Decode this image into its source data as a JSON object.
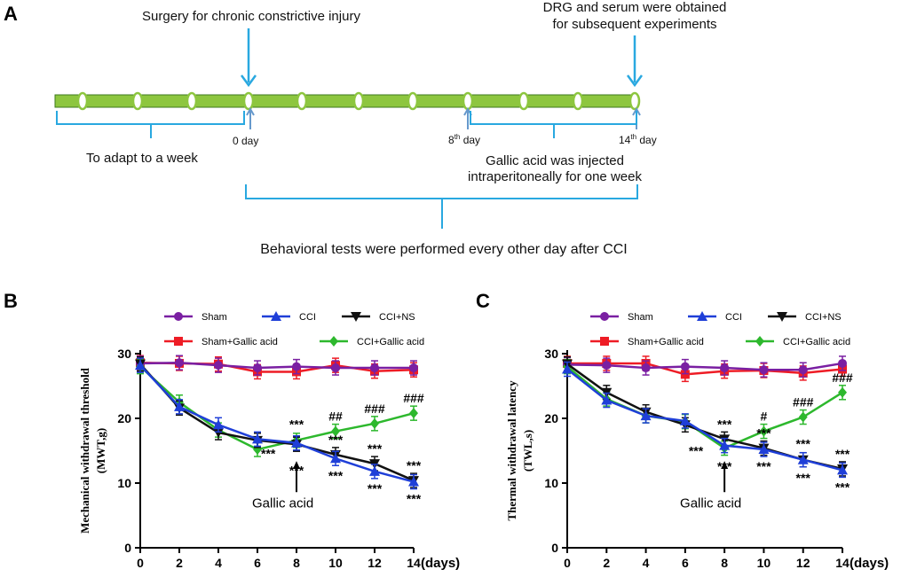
{
  "panel_a": {
    "letter": "A",
    "surgery_label": "Surgery for chronic constrictive injury",
    "dissection_label_line1": "DRG and serum were obtained",
    "dissection_label_line2": "for subsequent experiments",
    "adapt_label": "To adapt to a week",
    "day0_label": "0 day",
    "day8_num": "8",
    "day8_sup": "th",
    "day8_suffix": " day",
    "day14_num": "14",
    "day14_sup": "th",
    "day14_suffix": " day",
    "gallic_label_line1": "Gallic acid was injected",
    "gallic_label_line2": "intraperitoneally for one week",
    "behavior_label": "Behavioral tests were performed  every other day after CCI",
    "colors": {
      "bar_fill": "#8dc63f",
      "bar_stroke": "#3e7a1e",
      "arrow": "#29a8e0",
      "bracket": "#29a8e0"
    }
  },
  "chart_data": [
    {
      "panel": "B",
      "type": "line",
      "ylabel": "Mechanical withdrawal threshold",
      "ylabel_unit": "(MWT,g)",
      "xlabel": "(days)",
      "x": [
        0,
        2,
        4,
        6,
        8,
        10,
        12,
        14
      ],
      "xlim": [
        0,
        14
      ],
      "ylim": [
        0,
        30
      ],
      "yticks": [
        0,
        10,
        20,
        30
      ],
      "arrow_label": "Gallic acid",
      "arrow_x": 8,
      "series": [
        {
          "name": "Sham",
          "color": "#7a1fa2",
          "marker": "circle",
          "values": [
            28.5,
            28.6,
            28.2,
            27.8,
            28.0,
            27.8,
            27.8,
            27.8
          ]
        },
        {
          "name": "Sham+Gallic acid",
          "color": "#ee1c25",
          "marker": "square",
          "values": [
            28.6,
            28.5,
            28.4,
            27.2,
            27.2,
            28.2,
            27.3,
            27.5
          ]
        },
        {
          "name": "CCI",
          "color": "#1f3fd8",
          "marker": "triangle-up",
          "values": [
            28.2,
            21.8,
            19.0,
            16.8,
            16.2,
            13.8,
            11.8,
            10.2
          ]
        },
        {
          "name": "CCI+Gallic acid",
          "color": "#2db82d",
          "marker": "diamond",
          "values": [
            28.0,
            22.5,
            18.2,
            15.2,
            16.6,
            18.0,
            19.2,
            20.8
          ]
        },
        {
          "name": "CCI+NS",
          "color": "#111111",
          "marker": "triangle-down",
          "values": [
            28.4,
            21.6,
            17.8,
            16.6,
            16.0,
            14.4,
            13.0,
            10.4
          ]
        }
      ],
      "annotations": [
        {
          "x": 8,
          "y": 16.8,
          "text": "***",
          "pos": "above"
        },
        {
          "x": 8,
          "y": 14.6,
          "text": "***",
          "pos": "below"
        },
        {
          "x": 6,
          "y": 15.8,
          "text": "***",
          "pos": "right"
        },
        {
          "x": 10,
          "y": 18.0,
          "text": "##",
          "pos": "above"
        },
        {
          "x": 10,
          "y": 14.4,
          "text": "***",
          "pos": "above"
        },
        {
          "x": 10,
          "y": 13.8,
          "text": "***",
          "pos": "below"
        },
        {
          "x": 12,
          "y": 19.2,
          "text": "###",
          "pos": "above"
        },
        {
          "x": 12,
          "y": 13.0,
          "text": "***",
          "pos": "above"
        },
        {
          "x": 12,
          "y": 11.8,
          "text": "***",
          "pos": "below"
        },
        {
          "x": 14,
          "y": 20.8,
          "text": "###",
          "pos": "above"
        },
        {
          "x": 14,
          "y": 10.4,
          "text": "***",
          "pos": "above"
        },
        {
          "x": 14,
          "y": 10.2,
          "text": "***",
          "pos": "below"
        }
      ]
    },
    {
      "panel": "C",
      "type": "line",
      "ylabel": "Thermal withdrawal latency",
      "ylabel_unit": "(TWL,s)",
      "xlabel": "(days)",
      "x": [
        0,
        2,
        4,
        6,
        8,
        10,
        12,
        14
      ],
      "xlim": [
        0,
        14
      ],
      "ylim": [
        0,
        30
      ],
      "yticks": [
        0,
        10,
        20,
        30
      ],
      "arrow_label": "Gallic acid",
      "arrow_x": 8,
      "series": [
        {
          "name": "Sham",
          "color": "#7a1fa2",
          "marker": "circle",
          "values": [
            28.3,
            28.2,
            27.8,
            28.0,
            27.8,
            27.5,
            27.5,
            28.5
          ]
        },
        {
          "name": "Sham+Gallic acid",
          "color": "#ee1c25",
          "marker": "square",
          "values": [
            28.5,
            28.5,
            28.5,
            26.8,
            27.3,
            27.4,
            27.0,
            27.6
          ]
        },
        {
          "name": "CCI",
          "color": "#1f3fd8",
          "marker": "triangle-up",
          "values": [
            27.6,
            22.8,
            20.4,
            19.6,
            15.8,
            15.2,
            13.6,
            12.0
          ]
        },
        {
          "name": "CCI+Gallic acid",
          "color": "#2db82d",
          "marker": "diamond",
          "values": [
            28.0,
            23.0,
            20.4,
            19.5,
            15.4,
            18.0,
            20.2,
            24.0
          ]
        },
        {
          "name": "CCI+NS",
          "color": "#111111",
          "marker": "triangle-down",
          "values": [
            28.4,
            24.0,
            21.0,
            19.0,
            16.8,
            15.4,
            13.6,
            12.2
          ]
        }
      ],
      "annotations": [
        {
          "x": 8,
          "y": 16.8,
          "text": "***",
          "pos": "above"
        },
        {
          "x": 8,
          "y": 15.2,
          "text": "***",
          "pos": "below"
        },
        {
          "x": 6,
          "y": 16.2,
          "text": "***",
          "pos": "right"
        },
        {
          "x": 10,
          "y": 18.0,
          "text": "#",
          "pos": "above"
        },
        {
          "x": 10,
          "y": 15.4,
          "text": "***",
          "pos": "above"
        },
        {
          "x": 10,
          "y": 15.2,
          "text": "***",
          "pos": "below"
        },
        {
          "x": 12,
          "y": 20.2,
          "text": "###",
          "pos": "above"
        },
        {
          "x": 12,
          "y": 13.8,
          "text": "***",
          "pos": "above"
        },
        {
          "x": 12,
          "y": 13.4,
          "text": "***",
          "pos": "below"
        },
        {
          "x": 14,
          "y": 24.0,
          "text": "###",
          "pos": "above"
        },
        {
          "x": 14,
          "y": 12.2,
          "text": "***",
          "pos": "above"
        },
        {
          "x": 14,
          "y": 12.0,
          "text": "***",
          "pos": "below"
        }
      ]
    }
  ]
}
